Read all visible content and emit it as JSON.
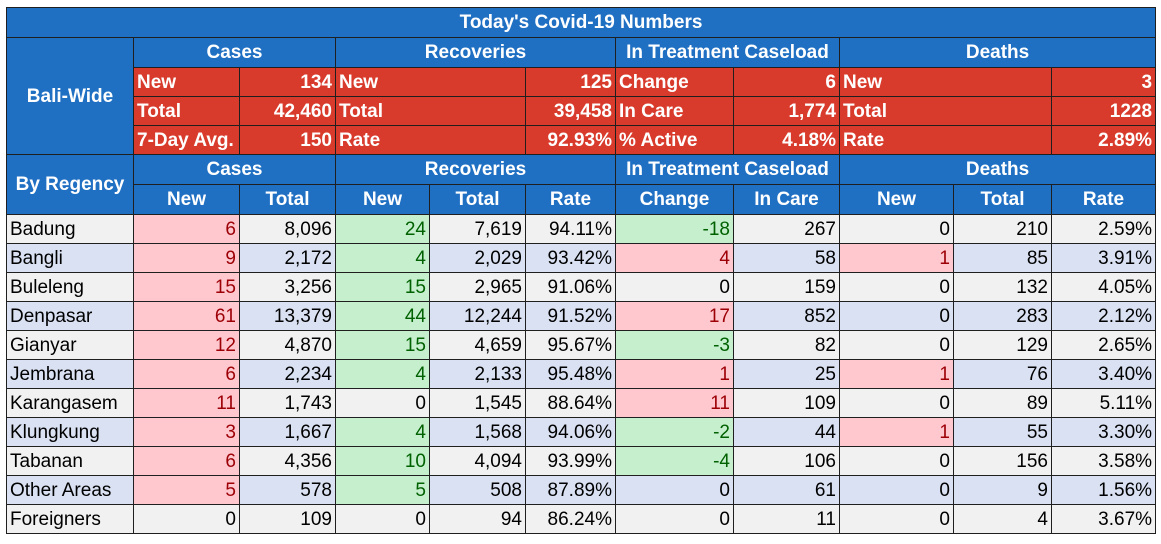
{
  "title": "Today's Covid-19 Numbers",
  "bali_wide": {
    "label": "Bali-Wide",
    "group_headers": [
      "Cases",
      "Recoveries",
      "In Treatment Caseload",
      "Deaths"
    ],
    "rows": [
      {
        "cases_label": "New",
        "cases_value": "134",
        "rec_label": "New",
        "rec_value": "125",
        "treat_label": "Change",
        "treat_value": "6",
        "deaths_label": "New",
        "deaths_value": "3"
      },
      {
        "cases_label": "Total",
        "cases_value": "42,460",
        "rec_label": "Total",
        "rec_value": "39,458",
        "treat_label": "In Care",
        "treat_value": "1,774",
        "deaths_label": "Total",
        "deaths_value": "1228"
      },
      {
        "cases_label": "7-Day Avg.",
        "cases_value": "150",
        "rec_label": "Rate",
        "rec_value": "92.93%",
        "treat_label": "% Active",
        "treat_value": "4.18%",
        "deaths_label": "Rate",
        "deaths_value": "2.89%"
      }
    ]
  },
  "by_regency": {
    "label": "By Regency",
    "group_headers": [
      "Cases",
      "Recoveries",
      "In Treatment Caseload",
      "Deaths"
    ],
    "sub_headers": [
      "New",
      "Total",
      "New",
      "Total",
      "Rate",
      "Change",
      "In Care",
      "New",
      "Total",
      "Rate"
    ],
    "rows": [
      {
        "name": "Badung",
        "cases_new": "6",
        "cases_total": "8,096",
        "rec_new": "24",
        "rec_total": "7,619",
        "rec_rate": "94.11%",
        "treat_change": "-18",
        "treat_in_care": "267",
        "deaths_new": "0",
        "deaths_total": "210",
        "deaths_rate": "2.59%"
      },
      {
        "name": "Bangli",
        "cases_new": "9",
        "cases_total": "2,172",
        "rec_new": "4",
        "rec_total": "2,029",
        "rec_rate": "93.42%",
        "treat_change": "4",
        "treat_in_care": "58",
        "deaths_new": "1",
        "deaths_total": "85",
        "deaths_rate": "3.91%"
      },
      {
        "name": "Buleleng",
        "cases_new": "15",
        "cases_total": "3,256",
        "rec_new": "15",
        "rec_total": "2,965",
        "rec_rate": "91.06%",
        "treat_change": "0",
        "treat_in_care": "159",
        "deaths_new": "0",
        "deaths_total": "132",
        "deaths_rate": "4.05%"
      },
      {
        "name": "Denpasar",
        "cases_new": "61",
        "cases_total": "13,379",
        "rec_new": "44",
        "rec_total": "12,244",
        "rec_rate": "91.52%",
        "treat_change": "17",
        "treat_in_care": "852",
        "deaths_new": "0",
        "deaths_total": "283",
        "deaths_rate": "2.12%"
      },
      {
        "name": "Gianyar",
        "cases_new": "12",
        "cases_total": "4,870",
        "rec_new": "15",
        "rec_total": "4,659",
        "rec_rate": "95.67%",
        "treat_change": "-3",
        "treat_in_care": "82",
        "deaths_new": "0",
        "deaths_total": "129",
        "deaths_rate": "2.65%"
      },
      {
        "name": "Jembrana",
        "cases_new": "6",
        "cases_total": "2,234",
        "rec_new": "4",
        "rec_total": "2,133",
        "rec_rate": "95.48%",
        "treat_change": "1",
        "treat_in_care": "25",
        "deaths_new": "1",
        "deaths_total": "76",
        "deaths_rate": "3.40%"
      },
      {
        "name": "Karangasem",
        "cases_new": "11",
        "cases_total": "1,743",
        "rec_new": "0",
        "rec_total": "1,545",
        "rec_rate": "88.64%",
        "treat_change": "11",
        "treat_in_care": "109",
        "deaths_new": "0",
        "deaths_total": "89",
        "deaths_rate": "5.11%"
      },
      {
        "name": "Klungkung",
        "cases_new": "3",
        "cases_total": "1,667",
        "rec_new": "4",
        "rec_total": "1,568",
        "rec_rate": "94.06%",
        "treat_change": "-2",
        "treat_in_care": "44",
        "deaths_new": "1",
        "deaths_total": "55",
        "deaths_rate": "3.30%"
      },
      {
        "name": "Tabanan",
        "cases_new": "6",
        "cases_total": "4,356",
        "rec_new": "10",
        "rec_total": "4,094",
        "rec_rate": "93.99%",
        "treat_change": "-4",
        "treat_in_care": "106",
        "deaths_new": "0",
        "deaths_total": "156",
        "deaths_rate": "3.58%"
      },
      {
        "name": "Other Areas",
        "cases_new": "5",
        "cases_total": "578",
        "rec_new": "5",
        "rec_total": "508",
        "rec_rate": "87.89%",
        "treat_change": "0",
        "treat_in_care": "61",
        "deaths_new": "0",
        "deaths_total": "9",
        "deaths_rate": "1.56%"
      },
      {
        "name": "Foreigners",
        "cases_new": "0",
        "cases_total": "109",
        "rec_new": "0",
        "rec_total": "94",
        "rec_rate": "86.24%",
        "treat_change": "0",
        "treat_in_care": "11",
        "deaths_new": "0",
        "deaths_total": "4",
        "deaths_rate": "3.67%"
      }
    ]
  },
  "colors": {
    "header_blue": "#1f6fc3",
    "summary_red": "#d83a2b",
    "bad_fill": "#ffc7ce",
    "bad_text": "#9c0006",
    "good_fill": "#c6efce",
    "good_text": "#006100",
    "row_stripe_a": "#f1f1f1",
    "row_stripe_b": "#d9e1f2"
  }
}
